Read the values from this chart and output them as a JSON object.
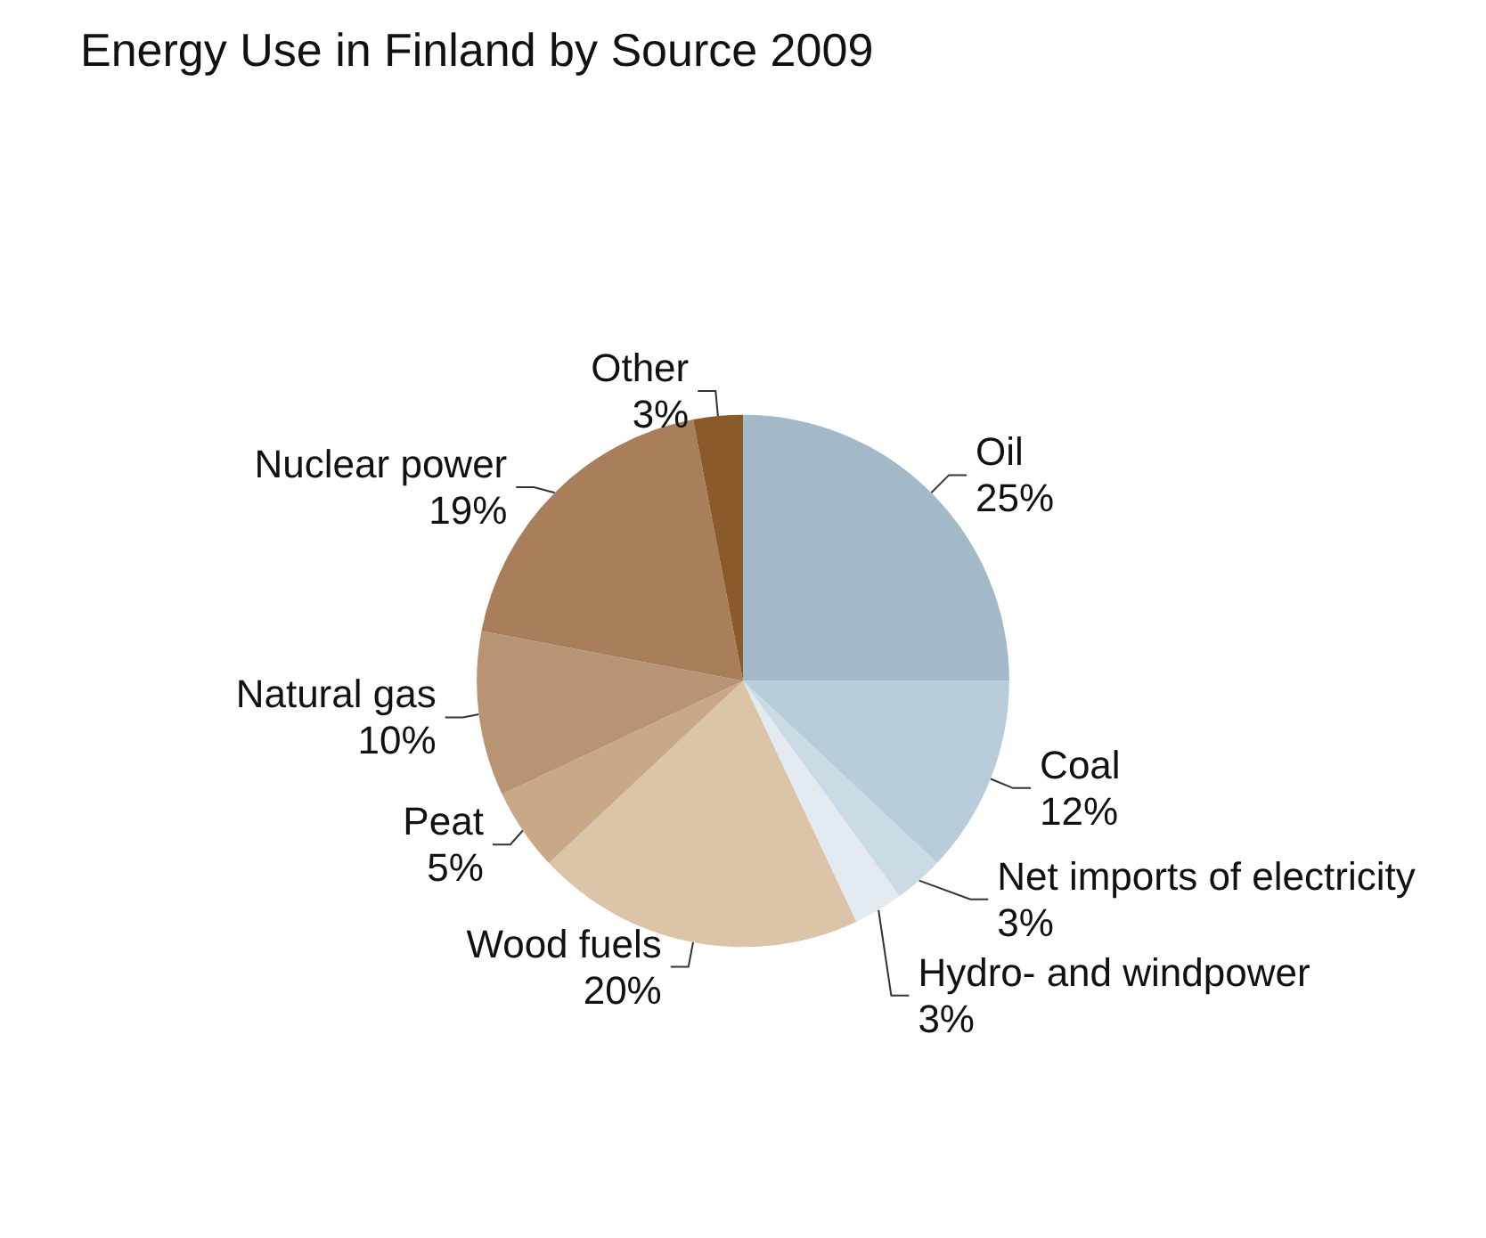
{
  "chart_data": {
    "type": "pie",
    "title": "Energy Use in Finland by Source 2009",
    "categories": [
      "Oil",
      "Coal",
      "Net imports of electricity",
      "Hydro- and windpower",
      "Wood fuels",
      "Peat",
      "Natural gas",
      "Nuclear power",
      "Other"
    ],
    "values": [
      25,
      12,
      3,
      3,
      20,
      5,
      10,
      19,
      3
    ],
    "value_labels": [
      "25%",
      "12%",
      "3%",
      "3%",
      "20%",
      "5%",
      "10%",
      "19%",
      "3%"
    ],
    "colors": [
      "#a3b9c8",
      "#b8ccd9",
      "#cbdbe6",
      "#e3ebf1",
      "#dcc4a8",
      "#c9a888",
      "#b99474",
      "#a87f5a",
      "#8b5a2b"
    ],
    "legend": false
  }
}
